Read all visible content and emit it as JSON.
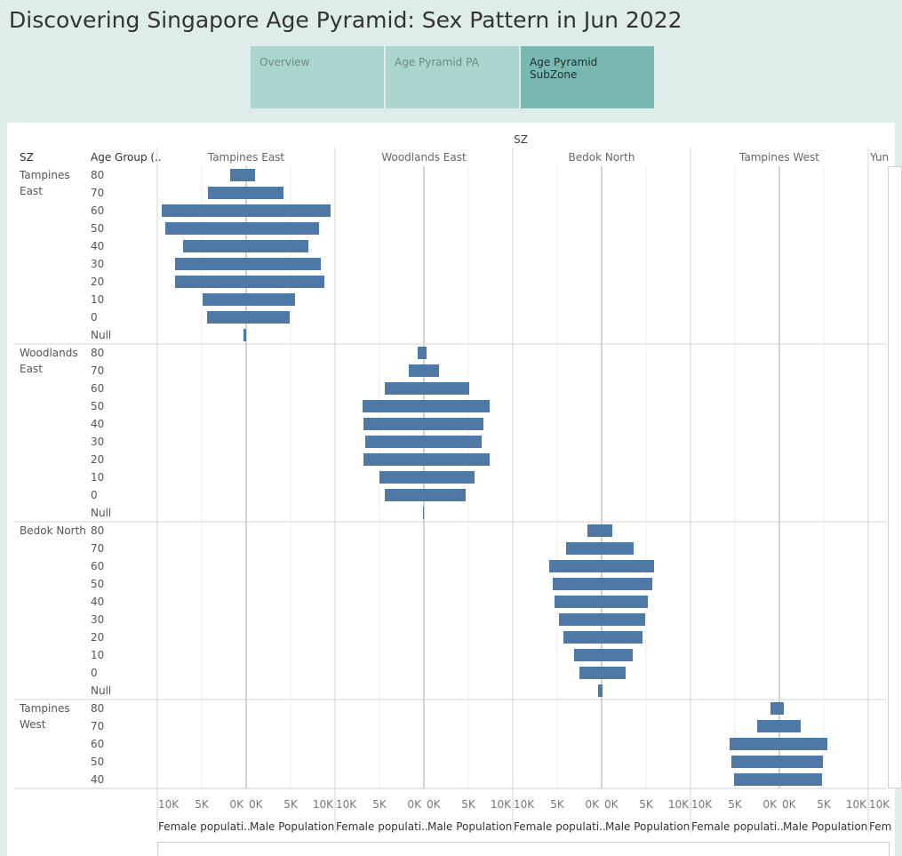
{
  "title": "Discovering Singapore Age Pyramid: Sex Pattern in Jun 2022",
  "tabs": [
    {
      "label": "Overview",
      "active": false
    },
    {
      "label": "Age Pyramid PA",
      "active": false
    },
    {
      "label": "Age Pyramid SubZone",
      "active": true
    }
  ],
  "colors": {
    "bar": "#4e79a7",
    "grid": "#d9d9d9",
    "axis": "#aaaaaa",
    "text": "#555555"
  },
  "chart_data": {
    "type": "bar",
    "top_header": "SZ",
    "row_header_sz": "SZ",
    "row_header_age": "Age Group (..",
    "columns": [
      "Tampines East",
      "Woodlands East",
      "Bedok North",
      "Tampines West",
      "Yun"
    ],
    "rows": [
      {
        "label": "Tampines\nEast",
        "column": 0,
        "ages": [
          "80",
          "70",
          "60",
          "50",
          "40",
          "30",
          "20",
          "10",
          "0",
          "Null"
        ],
        "female": [
          1.8,
          4.3,
          9.5,
          9.1,
          7.1,
          8.0,
          8.0,
          4.9,
          4.4,
          0.3
        ],
        "male": [
          1.0,
          4.2,
          9.5,
          8.2,
          7.0,
          8.4,
          8.8,
          5.5,
          4.9,
          0.0
        ]
      },
      {
        "label": "Woodlands\nEast",
        "column": 1,
        "ages": [
          "80",
          "70",
          "60",
          "50",
          "40",
          "30",
          "20",
          "10",
          "0",
          "Null"
        ],
        "female": [
          0.7,
          1.7,
          4.4,
          6.9,
          6.8,
          6.6,
          6.8,
          5.0,
          4.4,
          0.1
        ],
        "male": [
          0.3,
          1.7,
          5.1,
          7.4,
          6.7,
          6.5,
          7.4,
          5.7,
          4.7,
          0.0
        ]
      },
      {
        "label": "Bedok North",
        "column": 2,
        "ages": [
          "80",
          "70",
          "60",
          "50",
          "40",
          "30",
          "20",
          "10",
          "0",
          "Null"
        ],
        "female": [
          1.6,
          4.0,
          5.9,
          5.5,
          5.3,
          4.8,
          4.3,
          3.1,
          2.5,
          0.4
        ],
        "male": [
          1.2,
          3.6,
          5.9,
          5.7,
          5.2,
          4.9,
          4.6,
          3.5,
          2.7,
          0.1
        ]
      },
      {
        "label": "Tampines\nWest",
        "column": 3,
        "ages": [
          "80",
          "70",
          "60",
          "50",
          "40"
        ],
        "female": [
          1.0,
          2.5,
          5.6,
          5.4,
          5.1
        ],
        "male": [
          0.5,
          2.4,
          5.4,
          4.9,
          4.8
        ]
      }
    ],
    "x_ticks_female": [
      "10K",
      "5K",
      "0K"
    ],
    "x_ticks_male": [
      "0K",
      "5K",
      "10K"
    ],
    "x_tick_partial": "10K",
    "axis_title_female": "Female populati..",
    "axis_title_male": "Male Population",
    "axis_title_partial": "Fem",
    "xlim": [
      0,
      10
    ]
  }
}
